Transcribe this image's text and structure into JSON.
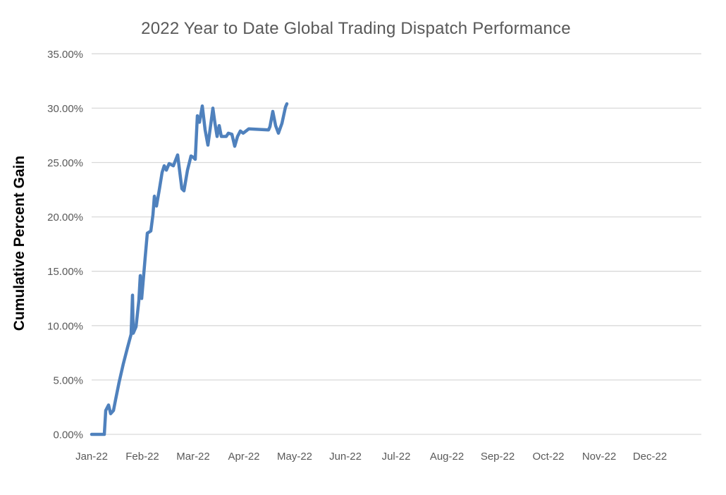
{
  "page": {
    "background": "#FFFFFF"
  },
  "chart_data": {
    "type": "line",
    "title": "2022 Year to Date Global Trading Dispatch Performance",
    "ylabel": "Cumulative Percent Gain",
    "xlabel": "",
    "legend": "none",
    "grid": "horizontal-only",
    "x_tick_labels": [
      "Jan-22",
      "Feb-22",
      "Mar-22",
      "Apr-22",
      "May-22",
      "Jun-22",
      "Jul-22",
      "Aug-22",
      "Sep-22",
      "Oct-22",
      "Nov-22",
      "Dec-22"
    ],
    "y_tick_labels": [
      "0.00%",
      "5.00%",
      "10.00%",
      "15.00%",
      "20.00%",
      "25.00%",
      "30.00%",
      "35.00%"
    ],
    "y_tick_values_pct": [
      0,
      5,
      10,
      15,
      20,
      25,
      30,
      35
    ],
    "ylim_pct": [
      0,
      35
    ],
    "xlim_months_from_jan1_2022": [
      0,
      12
    ],
    "colors": {
      "line": "#4F81BD",
      "grid": "#D9D9D9",
      "axis_text": "#595959",
      "title_text": "#595959",
      "y_axis_title_text": "#000000",
      "background": "#FFFFFF"
    },
    "series": [
      {
        "name": "Cumulative Percent Gain",
        "color": "#4F81BD",
        "stroke_width": 4.5,
        "points_x_months_y_pct": [
          [
            0.0,
            0.0
          ],
          [
            0.25,
            0.0
          ],
          [
            0.278,
            2.2
          ],
          [
            0.333,
            2.7
          ],
          [
            0.375,
            1.9
          ],
          [
            0.431,
            2.2
          ],
          [
            0.472,
            3.2
          ],
          [
            0.542,
            4.8
          ],
          [
            0.625,
            6.5
          ],
          [
            0.708,
            8.0
          ],
          [
            0.778,
            9.2
          ],
          [
            0.806,
            12.8
          ],
          [
            0.819,
            9.3
          ],
          [
            0.875,
            9.9
          ],
          [
            0.931,
            12.3
          ],
          [
            0.958,
            14.6
          ],
          [
            0.986,
            12.5
          ],
          [
            1.014,
            14.0
          ],
          [
            1.056,
            16.3
          ],
          [
            1.097,
            18.5
          ],
          [
            1.167,
            18.7
          ],
          [
            1.208,
            20.2
          ],
          [
            1.236,
            21.9
          ],
          [
            1.278,
            21.0
          ],
          [
            1.333,
            22.5
          ],
          [
            1.389,
            24.1
          ],
          [
            1.431,
            24.7
          ],
          [
            1.472,
            24.3
          ],
          [
            1.528,
            24.9
          ],
          [
            1.611,
            24.7
          ],
          [
            1.694,
            25.7
          ],
          [
            1.778,
            22.6
          ],
          [
            1.819,
            22.4
          ],
          [
            1.889,
            24.3
          ],
          [
            1.958,
            25.6
          ],
          [
            2.0,
            25.5
          ],
          [
            2.042,
            25.3
          ],
          [
            2.083,
            29.3
          ],
          [
            2.125,
            28.7
          ],
          [
            2.181,
            30.2
          ],
          [
            2.236,
            28.0
          ],
          [
            2.292,
            26.6
          ],
          [
            2.347,
            28.5
          ],
          [
            2.389,
            30.0
          ],
          [
            2.431,
            28.6
          ],
          [
            2.472,
            27.4
          ],
          [
            2.514,
            28.4
          ],
          [
            2.556,
            27.4
          ],
          [
            2.653,
            27.4
          ],
          [
            2.694,
            27.7
          ],
          [
            2.764,
            27.6
          ],
          [
            2.819,
            26.5
          ],
          [
            2.875,
            27.4
          ],
          [
            2.931,
            27.9
          ],
          [
            2.986,
            27.7
          ],
          [
            3.042,
            27.9
          ],
          [
            3.097,
            28.1
          ],
          [
            3.486,
            28.0
          ],
          [
            3.514,
            28.3
          ],
          [
            3.569,
            29.7
          ],
          [
            3.625,
            28.4
          ],
          [
            3.681,
            27.7
          ],
          [
            3.75,
            28.6
          ],
          [
            3.819,
            30.1
          ],
          [
            3.847,
            30.4
          ]
        ]
      }
    ]
  }
}
